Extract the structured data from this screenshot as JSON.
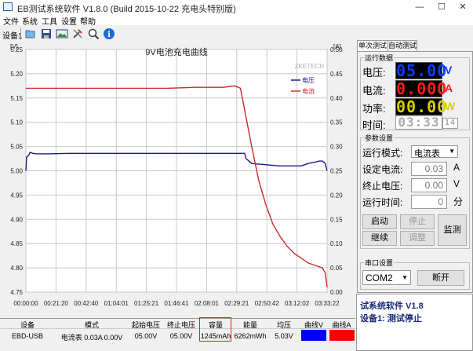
{
  "window": {
    "title": "EB测试系统软件 V1.8.0 (Build 2015-10-22 充电头特别版)",
    "controls": [
      "—",
      "☐",
      "✕"
    ]
  },
  "menu": [
    "文件",
    "系统",
    "工具",
    "设置",
    "帮助"
  ],
  "toolbar": {
    "device_label": "设备1",
    "icons": [
      "open-icon",
      "save-icon",
      "picture-icon",
      "tools-icon",
      "search-icon",
      "info-icon"
    ]
  },
  "chart_data": {
    "type": "line",
    "title": "9V电池充电曲线",
    "ylabel": "[V]",
    "y2label": "[A]",
    "ylim": [
      4.75,
      5.25
    ],
    "y2lim": [
      0,
      0.5
    ],
    "y_ticks": [
      "5.25",
      "5.20",
      "5.15",
      "5.10",
      "5.05",
      "5.00",
      "4.95",
      "4.90",
      "4.85",
      "4.80",
      "4.75"
    ],
    "y2_ticks": [
      "0.50",
      "0.45",
      "0.40",
      "0.35",
      "0.30",
      "0.25",
      "0.20",
      "0.15",
      "0.10",
      "0.05",
      "0.00"
    ],
    "x_ticks": [
      "00:00:00",
      "00:21:20",
      "00:42:40",
      "01:04:01",
      "01:25:21",
      "01:46:41",
      "02:08:01",
      "02:29:21",
      "02:50:42",
      "03:12:02",
      "03:33:22"
    ],
    "xlim_minutes": [
      0,
      213.4
    ],
    "watermark": "ZKETECH",
    "legend_position": "top-right",
    "grid": true,
    "series": [
      {
        "name": "电压",
        "color": "#1a1a8c",
        "axis": "left",
        "points": [
          [
            0,
            5.0
          ],
          [
            0.5,
            5.028
          ],
          [
            2,
            5.032
          ],
          [
            3,
            5.038
          ],
          [
            5,
            5.036
          ],
          [
            8,
            5.035
          ],
          [
            15,
            5.035
          ],
          [
            30,
            5.036
          ],
          [
            60,
            5.036
          ],
          [
            90,
            5.036
          ],
          [
            120,
            5.036
          ],
          [
            140,
            5.036
          ],
          [
            150,
            5.036
          ],
          [
            155,
            5.036
          ],
          [
            156,
            5.025
          ],
          [
            160,
            5.015
          ],
          [
            180,
            5.01
          ],
          [
            195,
            5.01
          ],
          [
            200,
            5.015
          ],
          [
            205,
            5.018
          ],
          [
            208,
            5.02
          ],
          [
            210,
            5.02
          ],
          [
            212,
            5.015
          ],
          [
            213.4,
            5.0
          ]
        ]
      },
      {
        "name": "电流",
        "color": "#cc2a2a",
        "axis": "right",
        "points": [
          [
            0,
            0.42
          ],
          [
            20,
            0.42
          ],
          [
            60,
            0.42
          ],
          [
            100,
            0.42
          ],
          [
            120,
            0.422
          ],
          [
            140,
            0.422
          ],
          [
            148,
            0.425
          ],
          [
            152,
            0.42
          ],
          [
            156,
            0.36
          ],
          [
            160,
            0.3
          ],
          [
            165,
            0.23
          ],
          [
            170,
            0.18
          ],
          [
            175,
            0.14
          ],
          [
            180,
            0.115
          ],
          [
            185,
            0.095
          ],
          [
            190,
            0.08
          ],
          [
            195,
            0.07
          ],
          [
            200,
            0.06
          ],
          [
            205,
            0.055
          ],
          [
            210,
            0.05
          ],
          [
            212,
            0.04
          ],
          [
            213.4,
            0.01
          ]
        ]
      }
    ]
  },
  "right_panel": {
    "tabs": [
      "单次测试",
      "自动测试"
    ],
    "status_group": {
      "title": "运行数据",
      "rows": [
        {
          "label": "电压:",
          "value": "05.00",
          "unit": "V",
          "color": "#0a3cff"
        },
        {
          "label": "电流:",
          "value": "0.000",
          "unit": "A",
          "color": "#ff1a1a"
        },
        {
          "label": "功率:",
          "value": "00.00",
          "unit": "W",
          "color": "#d8d000"
        },
        {
          "label": "时间:",
          "value": "03:33",
          "seconds": "14",
          "color": "#cccccc"
        }
      ]
    },
    "param_group": {
      "title": "参数设置",
      "mode_label": "运行模式:",
      "mode_value": "电流表",
      "current_label": "设定电流:",
      "current_value": "0.03",
      "current_unit": "A",
      "endv_label": "终止电压:",
      "endv_value": "0.00",
      "endv_unit": "V",
      "runtime_label": "运行时间:",
      "runtime_value": "0",
      "runtime_unit": "分",
      "buttons": {
        "start": "启动",
        "stop": "停止",
        "continue": "继续",
        "adjust": "调整",
        "monitor": "监测"
      }
    },
    "port_group": {
      "title": "串口设置",
      "port_value": "COM2",
      "open_button": "断开"
    }
  },
  "status_panel": {
    "line1": "试系统软件 V1.8",
    "line2": "设备1: 测试停止"
  },
  "bottom_table": {
    "headers": [
      "设备",
      "模式",
      "起始电压",
      "终止电压",
      "容量",
      "能量",
      "均压",
      "曲线V",
      "曲线A"
    ],
    "row": [
      "EBD-USB",
      "电流表  0.03A  0.00V",
      "05.00V",
      "05.00V",
      "1245mAh",
      "6262mWh",
      "5.03V",
      "",
      ""
    ],
    "curve_colors": [
      "#0000ff",
      "#ff0000"
    ]
  }
}
